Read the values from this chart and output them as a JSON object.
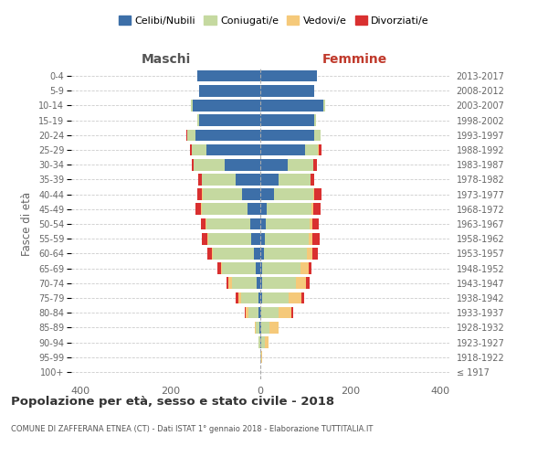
{
  "age_groups": [
    "100+",
    "95-99",
    "90-94",
    "85-89",
    "80-84",
    "75-79",
    "70-74",
    "65-69",
    "60-64",
    "55-59",
    "50-54",
    "45-49",
    "40-44",
    "35-39",
    "30-34",
    "25-29",
    "20-24",
    "15-19",
    "10-14",
    "5-9",
    "0-4"
  ],
  "birth_years": [
    "≤ 1917",
    "1918-1922",
    "1923-1927",
    "1928-1932",
    "1933-1937",
    "1938-1942",
    "1943-1947",
    "1948-1952",
    "1953-1957",
    "1958-1962",
    "1963-1967",
    "1968-1972",
    "1973-1977",
    "1978-1982",
    "1983-1987",
    "1988-1992",
    "1993-1997",
    "1998-2002",
    "2003-2007",
    "2008-2012",
    "2013-2017"
  ],
  "maschi": {
    "celibi": [
      0,
      0,
      1,
      2,
      4,
      5,
      8,
      10,
      15,
      20,
      22,
      28,
      40,
      55,
      80,
      120,
      145,
      135,
      150,
      135,
      140
    ],
    "coniugati": [
      0,
      0,
      3,
      8,
      22,
      38,
      55,
      75,
      90,
      95,
      98,
      102,
      88,
      75,
      68,
      32,
      18,
      4,
      4,
      0,
      0
    ],
    "vedovi": [
      0,
      0,
      0,
      3,
      6,
      6,
      8,
      3,
      2,
      2,
      2,
      2,
      2,
      0,
      0,
      0,
      0,
      0,
      0,
      0,
      0
    ],
    "divorziati": [
      0,
      0,
      0,
      0,
      2,
      5,
      5,
      8,
      10,
      12,
      10,
      12,
      10,
      8,
      5,
      5,
      2,
      0,
      0,
      0,
      0
    ]
  },
  "femmine": {
    "celibi": [
      0,
      0,
      2,
      2,
      3,
      4,
      5,
      5,
      8,
      10,
      12,
      15,
      30,
      40,
      60,
      100,
      120,
      120,
      140,
      120,
      125
    ],
    "coniugati": [
      0,
      2,
      8,
      18,
      38,
      58,
      75,
      85,
      95,
      98,
      98,
      98,
      88,
      72,
      58,
      28,
      14,
      4,
      4,
      0,
      0
    ],
    "vedovi": [
      0,
      2,
      8,
      20,
      28,
      30,
      22,
      18,
      12,
      8,
      5,
      5,
      2,
      0,
      0,
      2,
      0,
      0,
      0,
      0,
      0
    ],
    "divorziati": [
      0,
      0,
      0,
      0,
      5,
      5,
      8,
      5,
      12,
      15,
      15,
      15,
      15,
      8,
      8,
      5,
      0,
      0,
      0,
      0,
      0
    ]
  },
  "colors": {
    "celibi": "#3d6fa8",
    "coniugati": "#c5d9a0",
    "vedovi": "#f5c97a",
    "divorziati": "#d93030"
  },
  "legend_labels": [
    "Celibi/Nubili",
    "Coniugati/e",
    "Vedovi/e",
    "Divorziati/e"
  ],
  "xlim": 420,
  "title": "Popolazione per età, sesso e stato civile - 2018",
  "subtitle": "COMUNE DI ZAFFERANA ETNEA (CT) - Dati ISTAT 1° gennaio 2018 - Elaborazione TUTTITALIA.IT",
  "xlabel_left": "Maschi",
  "xlabel_right": "Femmine",
  "ylabel_left": "Fasce di età",
  "background_color": "#ffffff",
  "grid_color": "#cccccc"
}
